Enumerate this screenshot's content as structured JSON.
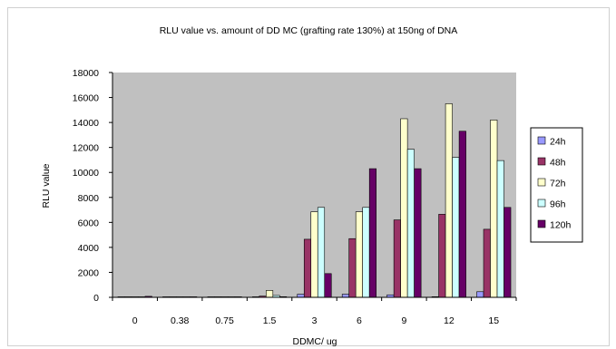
{
  "chart_data": {
    "type": "bar",
    "title": "RLU value vs. amount of DD MC (grafting rate 130%) at 150ng of DNA",
    "xlabel": "DDMC/ ug",
    "ylabel": "RLU value",
    "ylim": [
      0,
      18000
    ],
    "yticks": [
      0,
      2000,
      4000,
      6000,
      8000,
      10000,
      12000,
      14000,
      16000,
      18000
    ],
    "grid": false,
    "legend_position": "right",
    "categories": [
      "0",
      "0.38",
      "0.75",
      "1.5",
      "3",
      "6",
      "9",
      "12",
      "15"
    ],
    "series": [
      {
        "name": "24h",
        "color": "#9999ff",
        "values": [
          30,
          10,
          10,
          10,
          250,
          250,
          200,
          50,
          450
        ]
      },
      {
        "name": "48h",
        "color": "#993366",
        "values": [
          20,
          10,
          10,
          100,
          4650,
          4700,
          6200,
          6650,
          5450
        ]
      },
      {
        "name": "72h",
        "color": "#ffffcc",
        "values": [
          10,
          10,
          10,
          550,
          6850,
          6850,
          14300,
          15500,
          14200
        ]
      },
      {
        "name": "96h",
        "color": "#ccffff",
        "values": [
          20,
          10,
          10,
          150,
          7200,
          7200,
          11850,
          11200,
          10950
        ]
      },
      {
        "name": "120h",
        "color": "#660066",
        "values": [
          80,
          30,
          40,
          50,
          1900,
          10300,
          10300,
          13300,
          7200
        ]
      }
    ]
  }
}
